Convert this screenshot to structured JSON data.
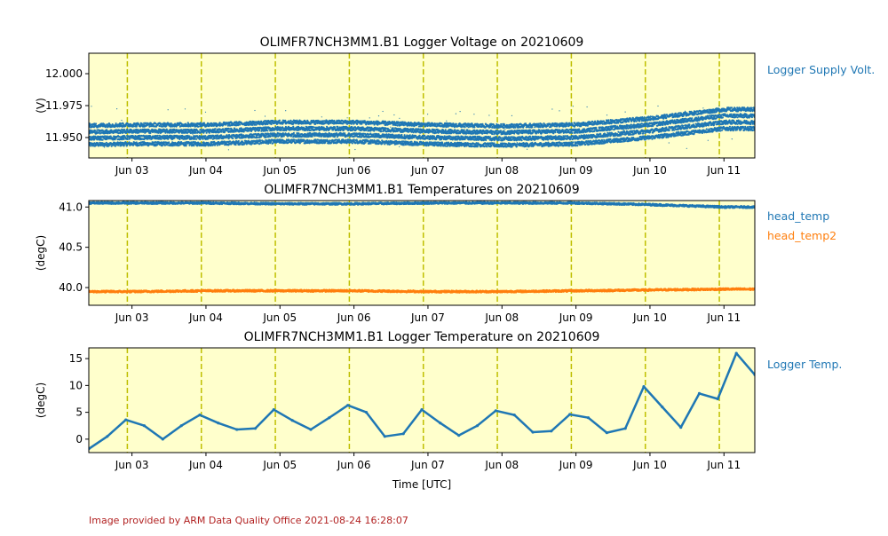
{
  "colors": {
    "background": "#ffffcc",
    "series_blue": "#1f77b4",
    "series_orange": "#ff7f0e",
    "day_line": "#bfbf00",
    "footer": "#b22222"
  },
  "x_axis": {
    "ticks": [
      "Jun 03",
      "Jun 04",
      "Jun 05",
      "Jun 06",
      "Jun 07",
      "Jun 08",
      "Jun 09",
      "Jun 10",
      "Jun 11"
    ],
    "xlabel": "Time [UTC]"
  },
  "footer": "Image provided by ARM Data Quality Office 2021-08-24 16:28:07",
  "chart_data": [
    {
      "type": "scatter",
      "title": "OLIMFR7NCH3MM1.B1 Logger Voltage on 20210609",
      "xlabel": "",
      "ylabel": "(V)",
      "xlim": [
        "2021-06-02T10:00",
        "2021-06-11T10:00"
      ],
      "ylim": [
        11.934,
        12.016
      ],
      "yticks": [
        "11.950",
        "11.975",
        "12.000"
      ],
      "ytick_values": [
        11.95,
        11.975,
        12.0
      ],
      "vlines": [
        "2021-06-02T22:30",
        "2021-06-03T22:30",
        "2021-06-04T22:30",
        "2021-06-05T22:30",
        "2021-06-06T22:30",
        "2021-06-07T22:30",
        "2021-06-08T22:30",
        "2021-06-09T22:30",
        "2021-06-10T22:30"
      ],
      "series": [
        {
          "name": "Logger Supply Volt.",
          "color": "#1f77b4",
          "levels": [
            11.945,
            11.95,
            11.955,
            11.96
          ],
          "x": [
            "06-02",
            "06-03",
            "06-04",
            "06-05",
            "06-06",
            "06-07",
            "06-08",
            "06-09",
            "06-10",
            "06-11"
          ],
          "y_mean": [
            11.952,
            11.953,
            11.953,
            11.955,
            11.955,
            11.953,
            11.952,
            11.953,
            11.958,
            11.965
          ]
        }
      ]
    },
    {
      "type": "scatter",
      "title": "OLIMFR7NCH3MM1.B1 Temperatures on 20210609",
      "xlabel": "",
      "ylabel": "(degC)",
      "ylim": [
        39.78,
        41.08
      ],
      "yticks": [
        "40.0",
        "40.5",
        "41.0"
      ],
      "ytick_values": [
        40.0,
        40.5,
        41.0
      ],
      "series": [
        {
          "name": "head_temp",
          "color": "#1f77b4",
          "x": [
            "06-02",
            "06-03",
            "06-04",
            "06-05",
            "06-06",
            "06-07",
            "06-08",
            "06-09",
            "06-10",
            "06-11"
          ],
          "values": [
            41.05,
            41.05,
            41.05,
            41.04,
            41.04,
            41.05,
            41.05,
            41.05,
            41.03,
            41.0
          ]
        },
        {
          "name": "head_temp2",
          "color": "#ff7f0e",
          "x": [
            "06-02",
            "06-03",
            "06-04",
            "06-05",
            "06-06",
            "06-07",
            "06-08",
            "06-09",
            "06-10",
            "06-11"
          ],
          "values": [
            39.95,
            39.95,
            39.96,
            39.96,
            39.96,
            39.95,
            39.95,
            39.96,
            39.97,
            39.98
          ]
        }
      ]
    },
    {
      "type": "line",
      "title": "OLIMFR7NCH3MM1.B1 Logger Temperature on 20210609",
      "xlabel": "Time [UTC]",
      "ylabel": "(degC)",
      "ylim": [
        -2.5,
        17.0
      ],
      "yticks": [
        "0",
        "5",
        "10",
        "15"
      ],
      "ytick_values": [
        0,
        5,
        10,
        15
      ],
      "series": [
        {
          "name": "Logger Temp.",
          "color": "#1f77b4",
          "x": [
            "06-02T10",
            "06-02T16",
            "06-02T22",
            "06-03T04",
            "06-03T10",
            "06-03T16",
            "06-03T22",
            "06-04T04",
            "06-04T10",
            "06-04T16",
            "06-04T22",
            "06-05T04",
            "06-05T10",
            "06-05T16",
            "06-05T22",
            "06-06T04",
            "06-06T10",
            "06-06T16",
            "06-06T22",
            "06-07T04",
            "06-07T10",
            "06-07T16",
            "06-07T22",
            "06-08T04",
            "06-08T10",
            "06-08T16",
            "06-08T22",
            "06-09T04",
            "06-09T10",
            "06-09T16",
            "06-09T22",
            "06-10T04",
            "06-10T10",
            "06-10T16",
            "06-10T22",
            "06-11T04",
            "06-11T10"
          ],
          "values": [
            -1.8,
            0.5,
            3.6,
            2.5,
            0.0,
            2.5,
            4.5,
            3.0,
            1.8,
            2.0,
            5.5,
            3.5,
            1.8,
            4.0,
            6.3,
            5.0,
            0.5,
            1.0,
            5.5,
            3.0,
            0.7,
            2.5,
            5.3,
            4.5,
            1.3,
            1.5,
            4.6,
            4.0,
            1.2,
            2.0,
            9.8,
            6.0,
            2.2,
            8.5,
            7.5,
            16.0,
            12.0
          ]
        }
      ]
    }
  ]
}
